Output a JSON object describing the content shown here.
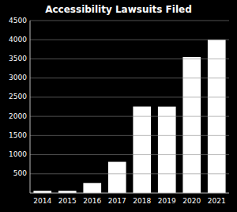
{
  "chart_data": {
    "type": "bar",
    "title": "Accessibility Lawsuits Filed",
    "categories": [
      "2014",
      "2015",
      "2016",
      "2017",
      "2018",
      "2019",
      "2020",
      "2021"
    ],
    "values": [
      57,
      57,
      262,
      814,
      2258,
      2256,
      3550,
      4000
    ],
    "color": "#ffffff",
    "ylim": [
      0,
      4500
    ],
    "yticks": [
      500,
      1000,
      1500,
      2000,
      2500,
      3000,
      3500,
      4000,
      4500
    ],
    "grid": true
  }
}
